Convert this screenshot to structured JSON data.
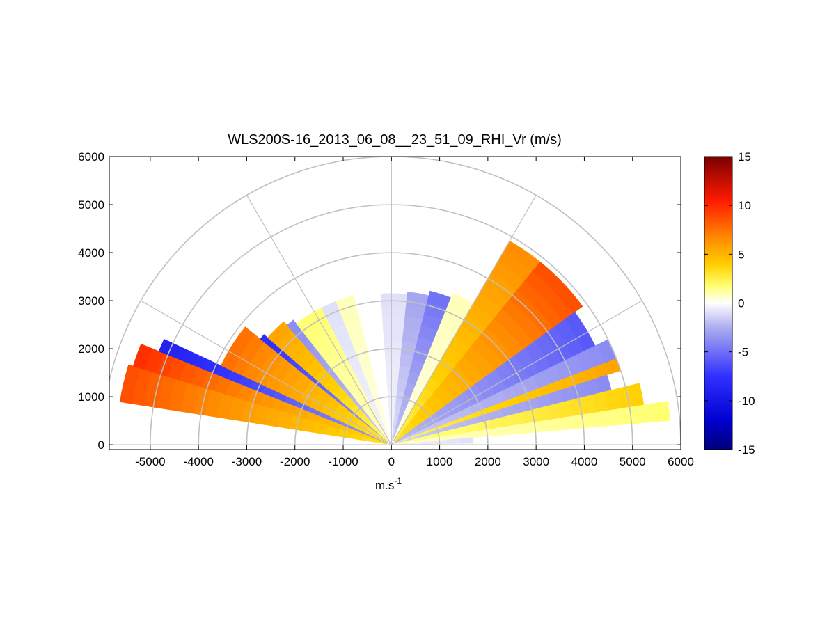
{
  "chart_data": {
    "type": "heatmap",
    "subtype": "polar RHI sector (range-height indicator)",
    "title": "WLS200S-16_2013_06_08__23_51_09_RHI_Vr (m/s)",
    "xlabel": "m.s",
    "xlabel_superscript": "-1",
    "ylabel": "",
    "xlim": [
      -5850,
      6000
    ],
    "ylim": [
      -100,
      6000
    ],
    "xticks": [
      -5000,
      -4000,
      -3000,
      -2000,
      -1000,
      0,
      1000,
      2000,
      3000,
      4000,
      5000,
      6000
    ],
    "yticks": [
      0,
      1000,
      2000,
      3000,
      4000,
      5000,
      6000
    ],
    "range_rings": [
      1000,
      2000,
      3000,
      4000,
      5000,
      6000
    ],
    "radial_lines_deg": [
      0,
      30,
      60,
      90,
      120,
      150,
      180
    ],
    "colorbar": {
      "label": "Vr (m/s)",
      "min": -15,
      "max": 15,
      "ticks": [
        15,
        10,
        5,
        0,
        -5,
        -10,
        -15
      ],
      "colors": [
        "#00007a",
        "#0000ff",
        "#dcdcf8",
        "#ffffff",
        "#ffff00",
        "#ff8800",
        "#ff0000",
        "#7a0000"
      ]
    },
    "sectors_by_elevation": [
      {
        "az_deg": [
          163,
          171
        ],
        "r_km": [
          0.1,
          5.7
        ],
        "vr": 9
      },
      {
        "az_deg": [
          158,
          163
        ],
        "r_km": [
          0.1,
          5.6
        ],
        "vr": 10
      },
      {
        "az_deg": [
          155,
          158
        ],
        "r_km": [
          0.1,
          5.2
        ],
        "vr": -9
      },
      {
        "az_deg": [
          141,
          155
        ],
        "r_km": [
          0.1,
          3.9
        ],
        "vr": 8
      },
      {
        "az_deg": [
          139,
          141
        ],
        "r_km": [
          0.1,
          3.5
        ],
        "vr": -8
      },
      {
        "az_deg": [
          131,
          139
        ],
        "r_km": [
          0.1,
          3.4
        ],
        "vr": 6
      },
      {
        "az_deg": [
          128,
          131
        ],
        "r_km": [
          0.1,
          3.3
        ],
        "vr": -4
      },
      {
        "az_deg": [
          117,
          128
        ],
        "r_km": [
          0.1,
          3.2
        ],
        "vr": 2
      },
      {
        "az_deg": [
          111,
          117
        ],
        "r_km": [
          0.1,
          3.2
        ],
        "vr": -1
      },
      {
        "az_deg": [
          104,
          111
        ],
        "r_km": [
          0.1,
          3.2
        ],
        "vr": 1
      },
      {
        "az_deg": [
          94,
          104
        ],
        "r_km": [
          0.1,
          3.15
        ],
        "vr": 0
      },
      {
        "az_deg": [
          84,
          94
        ],
        "r_km": [
          0.1,
          3.15
        ],
        "vr": -1
      },
      {
        "az_deg": [
          76,
          84
        ],
        "r_km": [
          0.1,
          3.2
        ],
        "vr": -3
      },
      {
        "az_deg": [
          68,
          76
        ],
        "r_km": [
          0.1,
          3.3
        ],
        "vr": -5
      },
      {
        "az_deg": [
          60,
          68
        ],
        "r_km": [
          0.1,
          3.4
        ],
        "vr": 1
      },
      {
        "az_deg": [
          51,
          60
        ],
        "r_km": [
          0.1,
          4.9
        ],
        "vr": 7
      },
      {
        "az_deg": [
          36,
          51
        ],
        "r_km": [
          0.1,
          4.9
        ],
        "vr": 9
      },
      {
        "az_deg": [
          26,
          36
        ],
        "r_km": [
          0.1,
          4.7
        ],
        "vr": -6
      },
      {
        "az_deg": [
          21,
          26
        ],
        "r_km": [
          0.1,
          5.0
        ],
        "vr": -4
      },
      {
        "az_deg": [
          18,
          21
        ],
        "r_km": [
          0.1,
          5.0
        ],
        "vr": 6
      },
      {
        "az_deg": [
          14,
          18
        ],
        "r_km": [
          0.1,
          4.7
        ],
        "vr": -4
      },
      {
        "az_deg": [
          9,
          14
        ],
        "r_km": [
          0.1,
          5.3
        ],
        "vr": 4
      },
      {
        "az_deg": [
          5,
          9
        ],
        "r_km": [
          0.1,
          5.8
        ],
        "vr": 2
      },
      {
        "az_deg": [
          1,
          5
        ],
        "r_km": [
          0.1,
          1.7
        ],
        "vr": -1
      }
    ],
    "grid": true
  }
}
